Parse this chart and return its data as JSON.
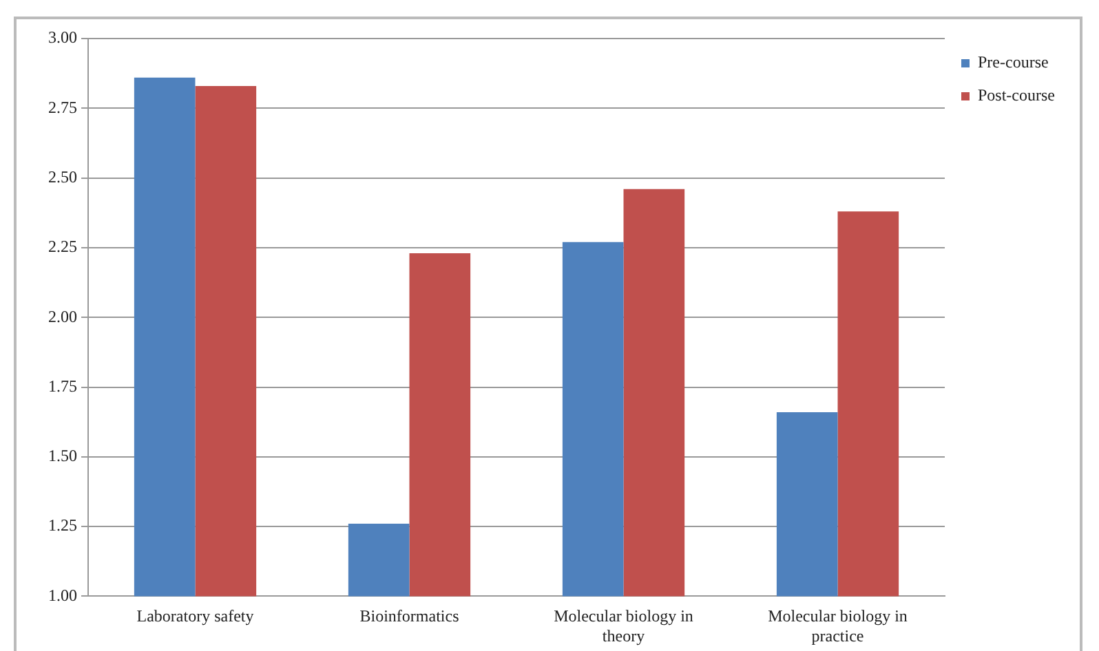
{
  "chart_data": {
    "type": "bar",
    "categories": [
      "Laboratory safety",
      "Bioinformatics",
      "Molecular biology in theory",
      "Molecular biology in practice"
    ],
    "series": [
      {
        "name": "Pre-course",
        "color": "#4f81bd",
        "values": [
          2.86,
          1.26,
          2.27,
          1.66
        ]
      },
      {
        "name": "Post-course",
        "color": "#c0504d",
        "values": [
          2.83,
          2.23,
          2.46,
          2.38
        ]
      }
    ],
    "ylim": [
      1.0,
      3.0
    ],
    "yticks": [
      {
        "value": 1.0,
        "label": "1.00"
      },
      {
        "value": 1.25,
        "label": "1.25"
      },
      {
        "value": 1.5,
        "label": "1.50"
      },
      {
        "value": 1.75,
        "label": "1.75"
      },
      {
        "value": 2.0,
        "label": "2.00"
      },
      {
        "value": 2.25,
        "label": "2.25"
      },
      {
        "value": 2.5,
        "label": "2.50"
      },
      {
        "value": 2.75,
        "label": "2.75"
      },
      {
        "value": 3.0,
        "label": "3.00"
      }
    ],
    "grid": "y",
    "legend": "top right"
  }
}
